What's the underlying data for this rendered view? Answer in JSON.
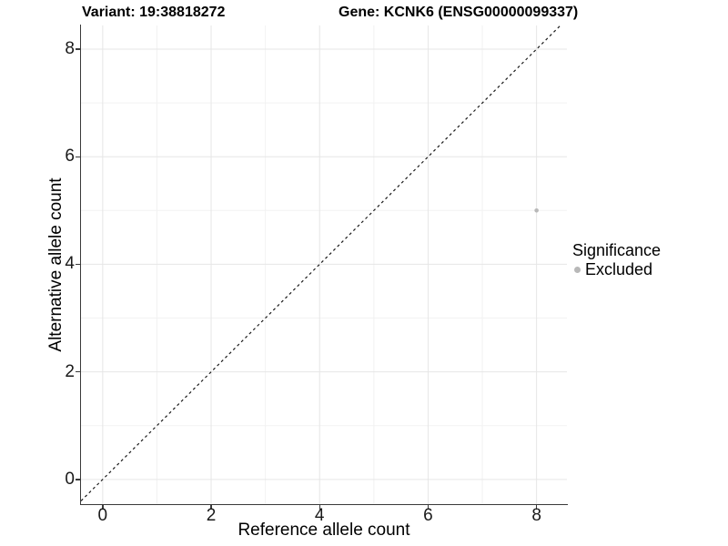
{
  "chart_data": {
    "type": "scatter",
    "titles": {
      "left": "Variant: 19:38818272",
      "right": "Gene: KCNK6 (ENSG00000099337)"
    },
    "xlabel": "Reference allele count",
    "ylabel": "Alternative allele count",
    "xlim": [
      -0.4,
      8.56
    ],
    "ylim": [
      -0.46,
      8.44
    ],
    "x_ticks": [
      0,
      2,
      4,
      6,
      8
    ],
    "y_ticks": [
      0,
      2,
      4,
      6,
      8
    ],
    "x_minor_gridlines": [
      1,
      3,
      5,
      7
    ],
    "y_minor_gridlines": [
      1,
      3,
      5,
      7
    ],
    "grid": "major+minor",
    "series": [
      {
        "name": "Excluded",
        "color": "#b8b8b8",
        "marker": "circle",
        "points": [
          {
            "x": 8,
            "y": 5
          }
        ]
      }
    ],
    "reference_line": {
      "kind": "identity y=x",
      "style": "dashed",
      "color": "#1a1a1a"
    },
    "legend": {
      "title": "Significance",
      "position": "right",
      "entries": [
        {
          "label": "Excluded",
          "color": "#b8b8b8",
          "marker": "circle"
        }
      ]
    }
  },
  "colors": {
    "background": "#ffffff",
    "grid_major": "#e6e6e6",
    "grid_minor": "#f2f2f2",
    "axis_line": "#3a3a3a",
    "tick_label": "#1a1a1a",
    "title": "#000000"
  }
}
